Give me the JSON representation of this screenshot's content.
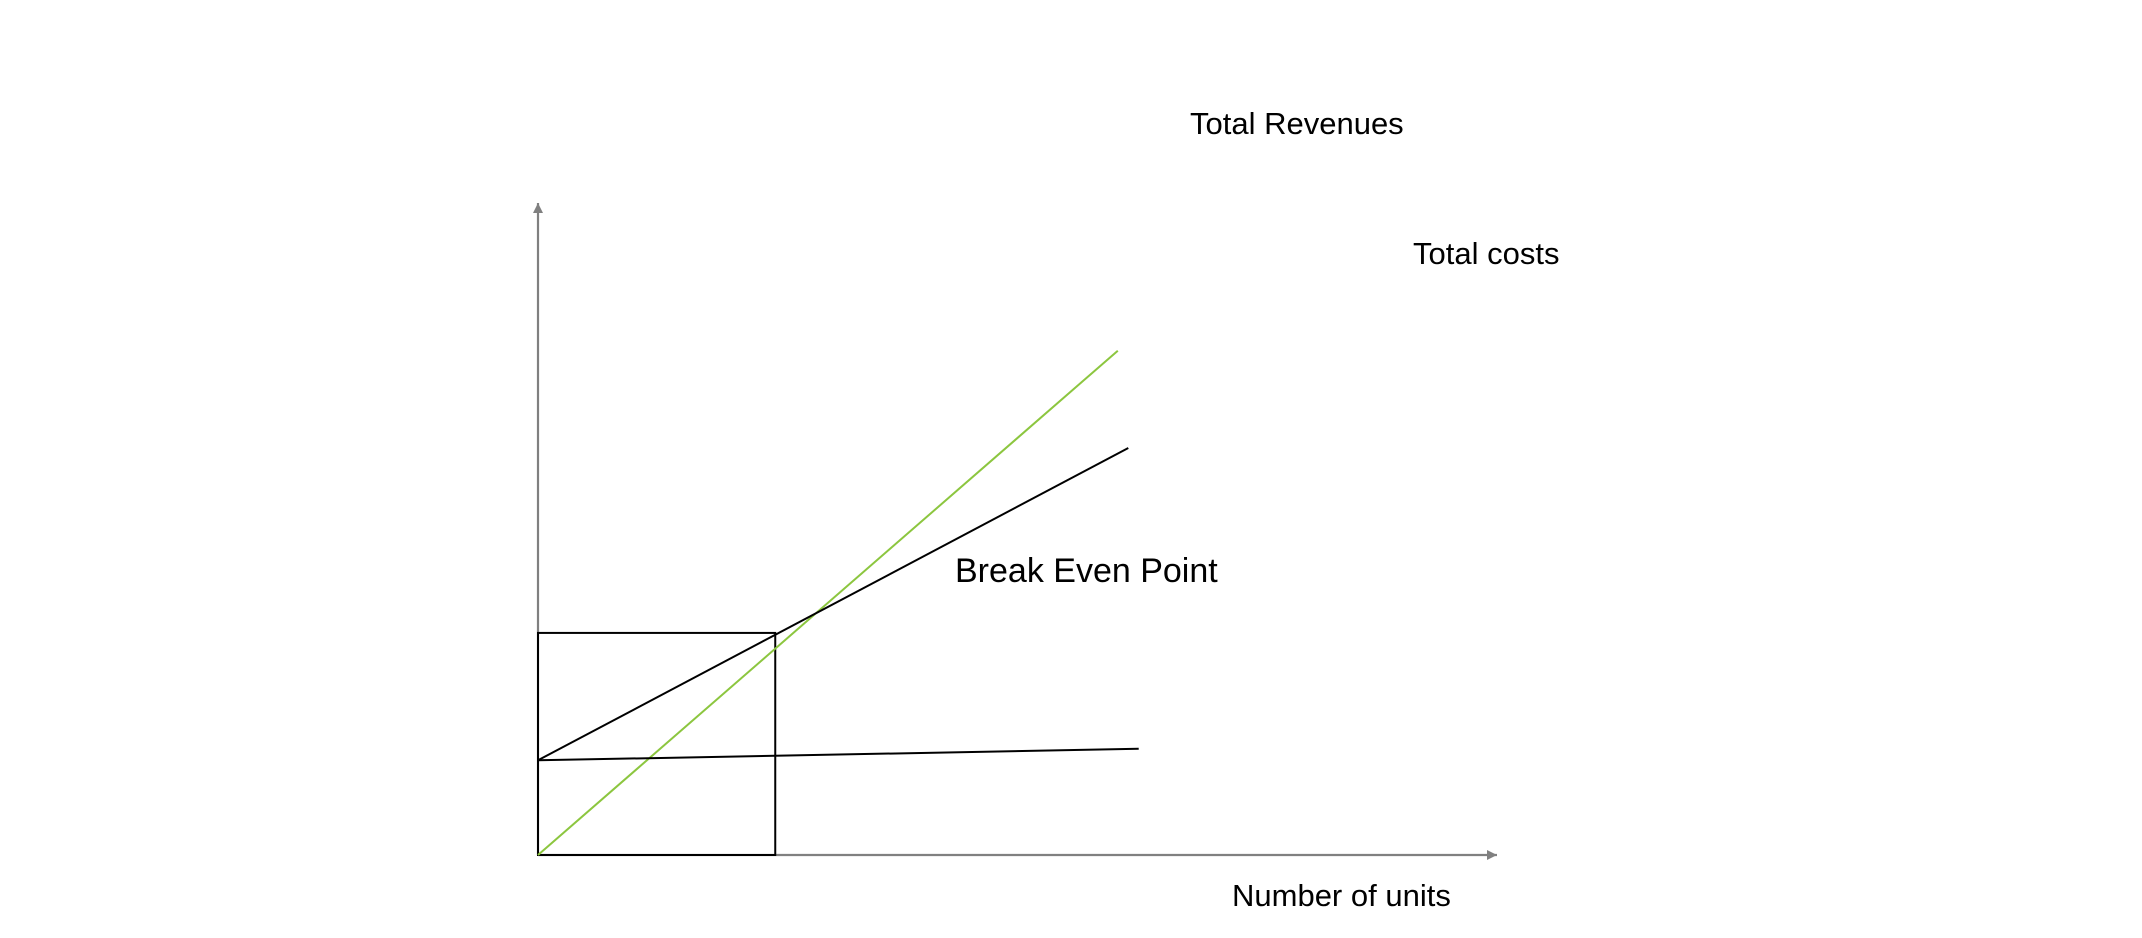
{
  "chart_data": {
    "type": "line",
    "title": "",
    "xlabel": "Number of units",
    "ylabel": "",
    "xlim": [
      0,
      10
    ],
    "ylim": [
      0,
      10
    ],
    "grid": false,
    "legend": "none",
    "axes": {
      "axis_color": "#808080"
    },
    "series": [
      {
        "name": "Total Revenues",
        "color": "#8cc63f",
        "points": [
          [
            0,
            0
          ],
          [
            6.11,
            7.88
          ]
        ]
      },
      {
        "name": "Total costs",
        "color": "#000000",
        "points": [
          [
            0,
            1.48
          ],
          [
            6.22,
            6.36
          ]
        ]
      },
      {
        "name": "",
        "color": "#000000",
        "points": [
          [
            0,
            1.48
          ],
          [
            6.33,
            1.66
          ]
        ]
      }
    ],
    "annotations": [
      {
        "id": "break-even",
        "text": "Break Even Point",
        "at": [
          2.5,
          3.47
        ]
      }
    ],
    "break_even": {
      "x": 2.5,
      "y": 3.47,
      "box_color": "#000000"
    }
  }
}
